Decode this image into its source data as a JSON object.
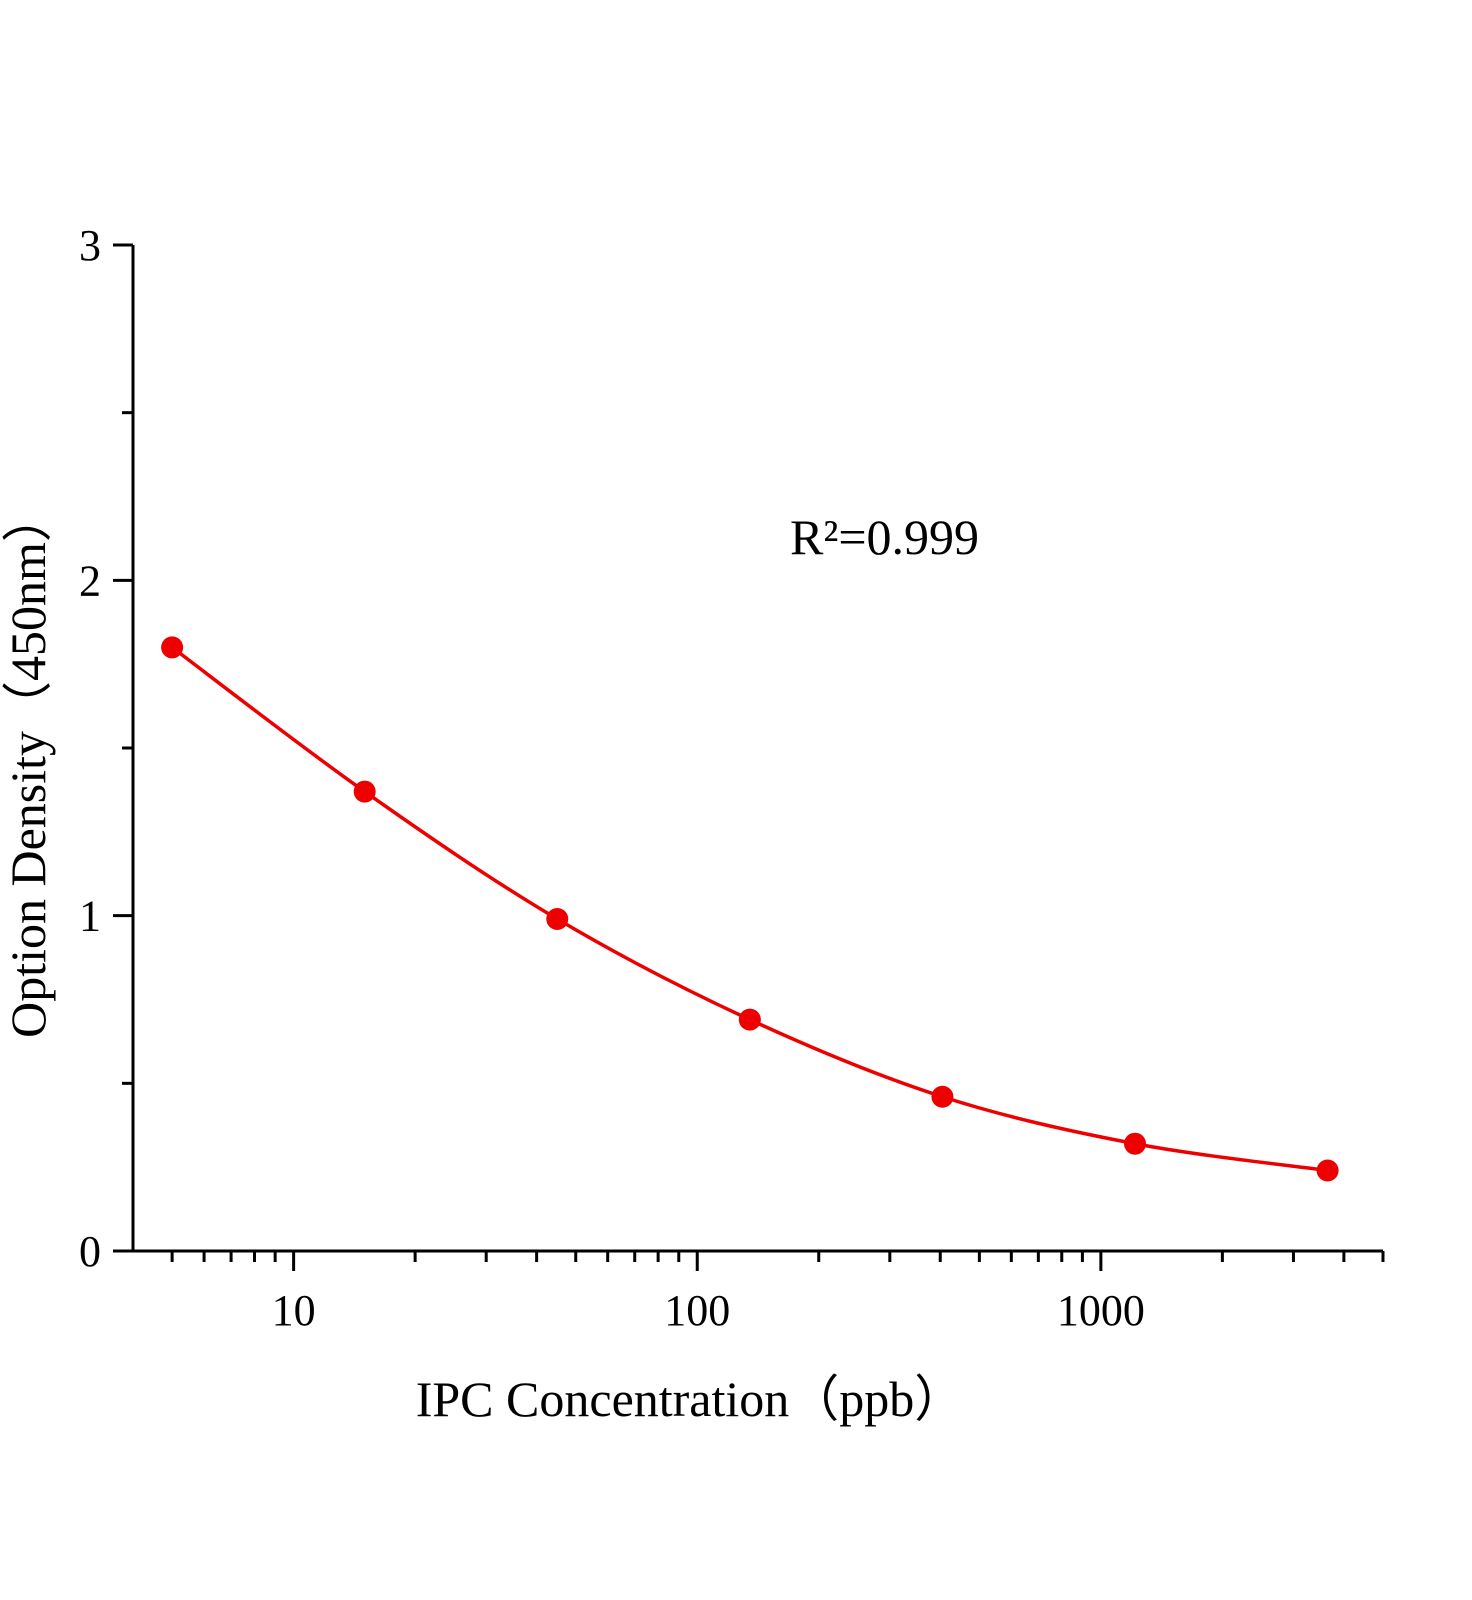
{
  "chart_data": {
    "type": "line",
    "x_label": "IPC  Concentration（ppb）",
    "y_label": "Option Density（450nm）",
    "annotation": "R²=0.999",
    "x": [
      5,
      15,
      45,
      135,
      405,
      1215,
      3645
    ],
    "series": [
      {
        "color": "#ee0000",
        "values": [
          1.8,
          1.37,
          0.99,
          0.69,
          0.46,
          0.32,
          0.24
        ]
      }
    ],
    "xscale": "log",
    "xlim": [
      4,
      5000
    ],
    "xticks": [
      10,
      100,
      1000
    ],
    "xminorticks": [
      5,
      6,
      7,
      8,
      9,
      20,
      30,
      40,
      50,
      60,
      70,
      80,
      90,
      200,
      300,
      400,
      500,
      600,
      700,
      800,
      900,
      2000,
      3000,
      4000,
      5000
    ],
    "ylim": [
      0,
      3
    ],
    "yticks": [
      0,
      1,
      2,
      3
    ],
    "yminorticks": [
      0.5,
      1.5,
      2.5
    ]
  }
}
